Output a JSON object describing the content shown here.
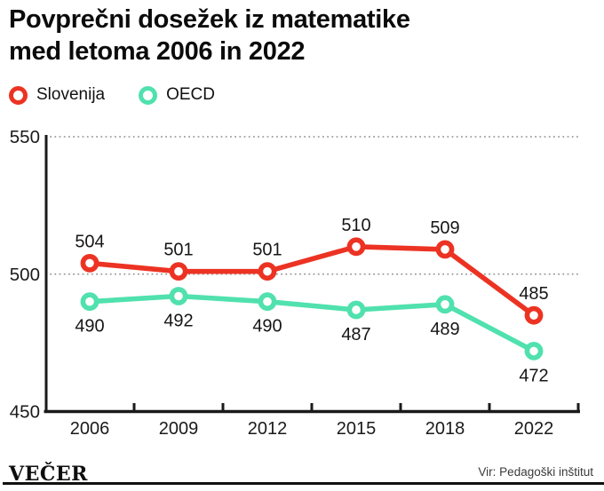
{
  "title": "Povprečni dosežek iz matematike\nmed letoma 2006 in 2022",
  "chart_data": {
    "type": "line",
    "categories": [
      "2006",
      "2009",
      "2012",
      "2015",
      "2018",
      "2022"
    ],
    "series": [
      {
        "name": "Slovenija",
        "color": "#ec3323",
        "values": [
          504,
          501,
          501,
          510,
          509,
          485
        ],
        "value_label_position": "above"
      },
      {
        "name": "OECD",
        "color": "#50e1ae",
        "values": [
          490,
          492,
          490,
          487,
          489,
          472
        ],
        "value_label_position": "below"
      }
    ],
    "ylim": [
      450,
      550
    ],
    "yticks": [
      450,
      500,
      550
    ],
    "grid": "horizontal-dotted",
    "marker": "open-circle",
    "legend_position": "top-left",
    "xlabel": "",
    "ylabel": ""
  },
  "colors": {
    "axis": "#1a1a1a",
    "grid": "#8f8f8f",
    "label": "#161616"
  },
  "footer": {
    "brand": "VEČER",
    "source": "Vir: Pedagoški inštitut"
  }
}
